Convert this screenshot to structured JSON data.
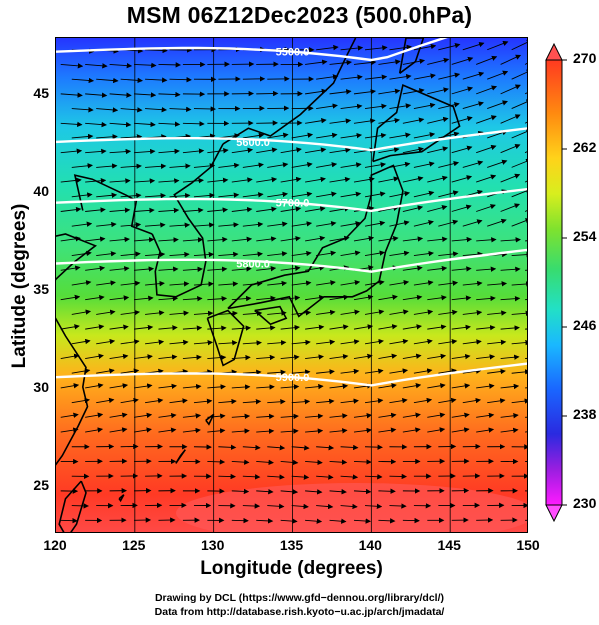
{
  "title": "MSM 06Z12Dec2023 (500.0hPa)",
  "x_axis": {
    "label": "Longitude (degrees)",
    "ticks": [
      "120",
      "125",
      "130",
      "135",
      "140",
      "145",
      "150"
    ],
    "range": [
      120,
      150
    ]
  },
  "y_axis": {
    "label": "Latitude  (degrees)",
    "ticks": [
      "25",
      "30",
      "35",
      "40",
      "45"
    ],
    "range": [
      22.5,
      47.8
    ]
  },
  "colorbar": {
    "ticks": [
      "270",
      "262",
      "254",
      "246",
      "238",
      "230"
    ],
    "min": 230,
    "max": 270
  },
  "contours": [
    {
      "label": "5500.0",
      "lat_base": 46.2
    },
    {
      "label": "5600.0",
      "lat_base": 41.6
    },
    {
      "label": "5700.0",
      "lat_base": 38.5
    },
    {
      "label": "5800.0",
      "lat_base": 35.4
    },
    {
      "label": "5900.0",
      "lat_base": 29.6
    }
  ],
  "colors": {
    "contour": "#ffffff",
    "coast": "#000000",
    "vector": "#000000"
  },
  "credits": [
    "Drawing by DCL (https://www.gfd−dennou.org/library/dcl/)",
    "Data from http://database.rish.kyoto−u.ac.jp/arch/jmadata/"
  ]
}
